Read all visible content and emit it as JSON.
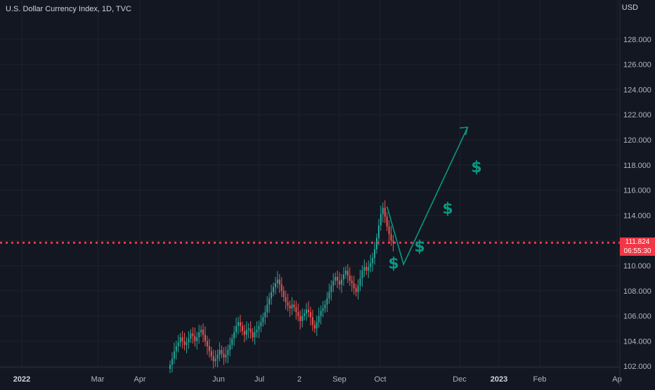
{
  "header": {
    "title": "U.S. Dollar Currency Index, 1D, TVC",
    "currency": "USD"
  },
  "price_label": {
    "value": "111.824",
    "countdown": "06:55:30"
  },
  "colors": {
    "background": "#131722",
    "grid": "#1e222d",
    "up": "#26a69a",
    "down": "#ef5350",
    "price_line": "#f23645",
    "drawing": "#089981"
  },
  "chart_data": {
    "type": "candlestick",
    "title": "U.S. Dollar Currency Index, 1D, TVC",
    "ylim": [
      102,
      130
    ],
    "yticks": [
      102,
      104,
      106,
      108,
      110,
      112,
      114,
      116,
      118,
      120,
      122,
      124,
      126,
      128
    ],
    "ytick_labels": [
      "102.000",
      "104.000",
      "106.000",
      "108.000",
      "110.000",
      "112.000",
      "114.000",
      "116.000",
      "118.000",
      "120.000",
      "122.000",
      "124.000",
      "126.000",
      "128.000"
    ],
    "x_labels": [
      {
        "label": "2022",
        "bold": true
      },
      {
        "label": "Mar",
        "bold": false
      },
      {
        "label": "Apr",
        "bold": false
      },
      {
        "label": "Jun",
        "bold": false
      },
      {
        "label": "Jul",
        "bold": false
      },
      {
        "label": "2",
        "bold": false
      },
      {
        "label": "Sep",
        "bold": false
      },
      {
        "label": "Oct",
        "bold": false
      },
      {
        "label": "Dec",
        "bold": false
      },
      {
        "label": "2023",
        "bold": true
      },
      {
        "label": "Feb",
        "bold": false
      },
      {
        "label": "Ap",
        "bold": false
      }
    ],
    "last_price": 111.824,
    "closes": [
      102.1,
      102.6,
      103.2,
      103.6,
      103.9,
      104.3,
      104.0,
      103.7,
      103.9,
      104.2,
      104.6,
      104.4,
      104.0,
      104.3,
      104.7,
      104.9,
      104.5,
      104.0,
      103.6,
      103.2,
      102.8,
      102.4,
      102.6,
      102.9,
      103.3,
      103.0,
      102.7,
      102.9,
      103.3,
      103.7,
      104.2,
      104.7,
      105.2,
      105.5,
      105.2,
      104.8,
      104.5,
      104.9,
      105.0,
      104.7,
      104.3,
      104.7,
      104.9,
      105.2,
      105.5,
      105.9,
      106.3,
      106.9,
      107.4,
      107.9,
      108.3,
      108.6,
      108.9,
      108.5,
      108.0,
      107.5,
      107.1,
      106.8,
      106.6,
      106.9,
      106.7,
      106.3,
      106.0,
      105.6,
      106.0,
      106.2,
      106.5,
      106.3,
      105.9,
      105.3,
      105.0,
      105.5,
      106.0,
      106.4,
      106.6,
      106.9,
      107.4,
      107.9,
      108.4,
      108.8,
      109.1,
      108.8,
      108.5,
      108.9,
      109.3,
      109.6,
      109.2,
      108.8,
      108.6,
      108.2,
      107.9,
      108.4,
      109.0,
      109.6,
      109.9,
      109.6,
      109.9,
      110.2,
      110.6,
      111.3,
      112.2,
      113.2,
      114.1,
      114.6,
      113.9,
      113.1,
      112.5,
      112.0,
      111.8
    ],
    "projection": [
      {
        "date_index": 105,
        "value": 114.7
      },
      {
        "date_index": 113,
        "value": 110.1
      },
      {
        "date_index": 144,
        "value": 121.0
      }
    ],
    "annotations": [
      "$",
      "$",
      "$",
      "$"
    ]
  }
}
